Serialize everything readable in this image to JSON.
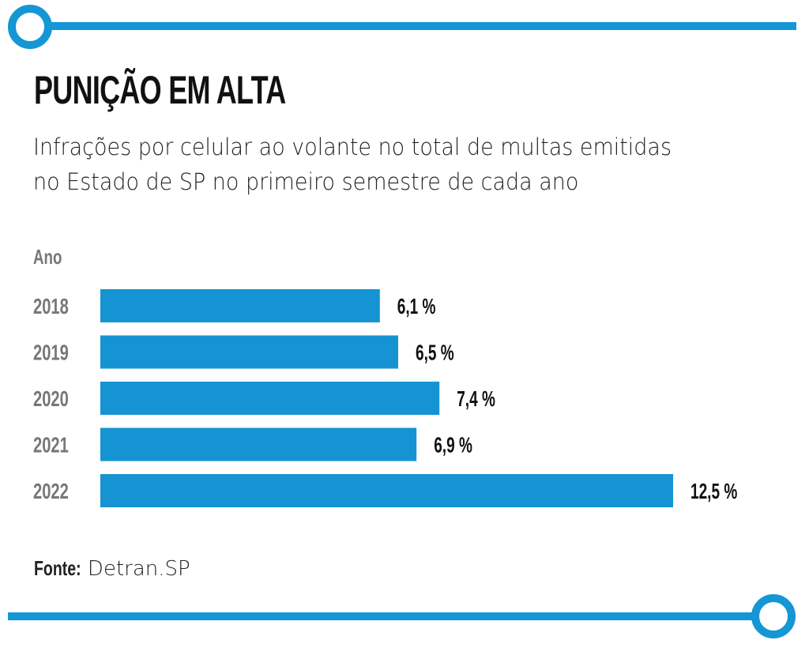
{
  "colors": {
    "accent": "#1596d5",
    "bar": "#1593d2",
    "category_text": "#777777",
    "value_text": "#111111"
  },
  "title": "PUNIÇÃO EM ALTA",
  "subtitle_lines": [
    "Infrações por celular ao volante no total de multas emitidas",
    "no Estado de SP no primeiro semestre de cada ano"
  ],
  "source": {
    "label": "Fonte:",
    "value": "Detran.SP"
  },
  "chart_data": {
    "type": "bar",
    "orientation": "horizontal",
    "title": "PUNIÇÃO EM ALTA",
    "subtitle": "Infrações por celular ao volante no total de multas emitidas no Estado de SP no primeiro semestre de cada ano",
    "ylabel": "Ano",
    "xlabel": "",
    "categories": [
      "2018",
      "2019",
      "2020",
      "2021",
      "2022"
    ],
    "values": [
      6.1,
      6.5,
      7.4,
      6.9,
      12.5
    ],
    "value_labels": [
      "6,1 %",
      "6,5 %",
      "7,4 %",
      "6,9 %",
      "12,5 %"
    ],
    "unit": "%",
    "xlim": [
      0,
      12.5
    ],
    "grid": false,
    "legend": "none"
  }
}
